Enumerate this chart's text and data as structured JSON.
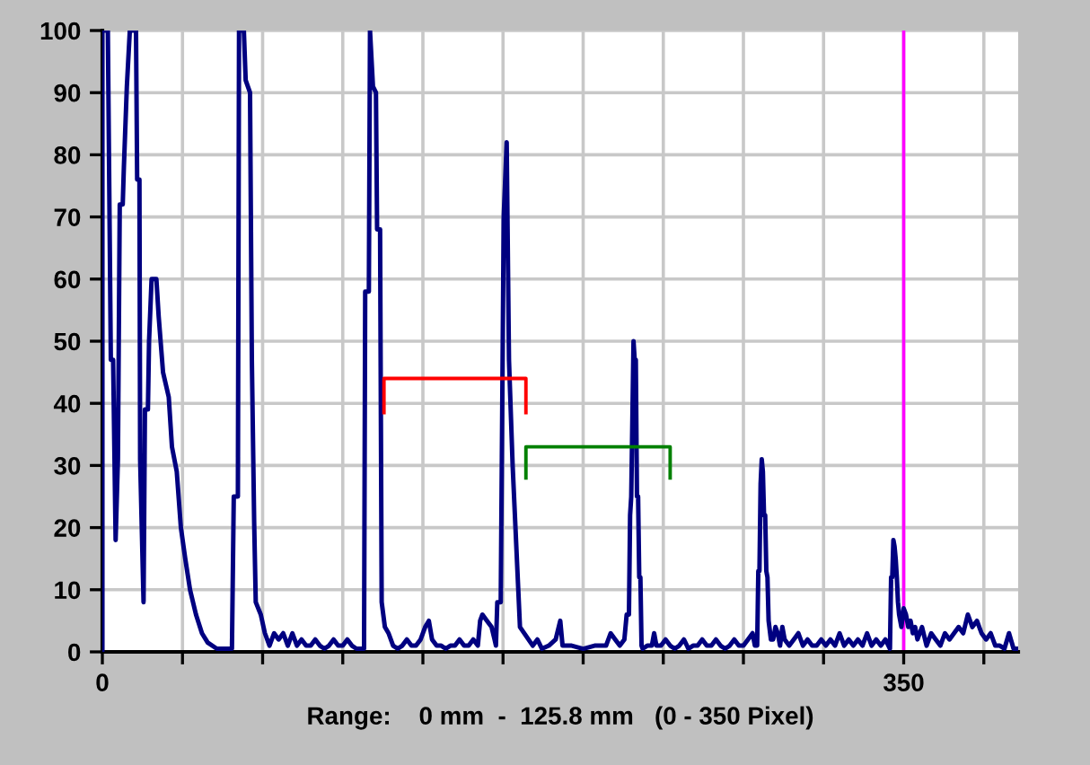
{
  "chart_data": {
    "type": "line",
    "xlabel": "Range:    0 mm  -  125.8 mm   (0 - 350 Pixel)",
    "xlim": [
      0,
      400
    ],
    "ylim": [
      0,
      100
    ],
    "xticks": [
      0,
      {
        "value": 35,
        "label": null
      },
      {
        "value": 70,
        "label": null
      },
      {
        "value": 105,
        "label": null
      },
      {
        "value": 140,
        "label": null
      },
      {
        "value": 175,
        "label": null
      },
      {
        "value": 210,
        "label": null
      },
      {
        "value": 245,
        "label": null
      },
      {
        "value": 280,
        "label": null
      },
      {
        "value": 315,
        "label": null
      },
      350,
      {
        "value": 385,
        "label": null
      }
    ],
    "yticks": [
      0,
      10,
      20,
      30,
      40,
      50,
      60,
      70,
      80,
      90,
      100
    ],
    "grid": true,
    "series": [
      {
        "color": "#000080",
        "x": [
          0,
          0,
          2.4,
          3.7,
          4.7,
          5.8,
          6.8,
          7.6,
          8.9,
          9.4,
          10.7,
          12,
          14.7,
          15.2,
          16.2,
          16.5,
          18,
          18.6,
          19.9,
          20.4,
          21.5,
          23.6,
          24.6,
          26.5,
          29,
          30.4,
          32.5,
          34.3,
          36.2,
          38.3,
          40.9,
          43.5,
          46,
          50,
          56.6,
          57.4,
          59.2,
          59.7,
          61.8,
          62.6,
          64.5,
          65.3,
          66.3,
          67,
          69.2,
          71,
          73,
          75,
          77,
          79,
          81,
          83,
          85,
          87,
          89,
          91,
          93,
          95,
          97,
          99,
          101,
          103,
          105,
          107,
          109,
          111,
          114.3,
          114.8,
          116.4,
          116.9,
          118.2,
          119.5,
          120,
          121.3,
          122,
          123.4,
          125,
          127,
          129,
          131,
          133,
          135,
          137,
          139,
          141,
          142.6,
          144,
          146,
          148,
          150,
          152,
          154,
          156,
          158,
          160,
          162,
          164,
          165,
          166,
          168,
          170,
          171.3,
          171.9,
          172.5,
          174,
          175.3,
          176.6,
          177.6,
          179.2,
          182.4,
          188,
          190,
          192,
          195,
          198,
          200,
          201,
          205,
          210,
          215,
          220,
          222,
          224,
          226,
          228,
          229,
          230,
          230.5,
          231,
          232,
          232.5,
          233,
          233.5,
          234,
          234.5,
          235,
          235.5,
          236,
          238,
          240,
          241,
          242,
          244,
          246,
          248,
          250,
          252,
          254,
          256,
          258,
          260,
          262,
          264,
          266,
          268,
          270,
          272,
          274,
          276,
          278,
          280,
          282,
          284,
          285,
          286,
          286.5,
          287,
          287.5,
          288,
          288.5,
          289,
          289.5,
          290,
          290.5,
          291,
          292,
          293,
          294,
          295,
          296,
          297,
          298,
          300,
          302,
          304,
          306,
          308,
          310,
          312,
          314,
          316,
          318,
          320,
          322,
          324,
          326,
          328,
          330,
          332,
          334,
          336,
          338,
          340,
          342,
          344,
          344.5,
          345,
          345.5,
          346,
          346.5,
          347,
          347.5,
          348,
          349,
          350,
          351,
          352,
          353,
          354,
          355,
          356,
          358,
          360,
          362,
          364,
          366,
          368,
          370,
          372,
          374,
          376,
          378,
          380,
          382,
          384,
          386,
          388,
          390,
          392,
          394,
          396,
          398,
          400
        ],
        "values": [
          0,
          100,
          100,
          47,
          47,
          18,
          31,
          72,
          72,
          78,
          91,
          100,
          100,
          76,
          76,
          31,
          8,
          39,
          39,
          50,
          60,
          60,
          54,
          45,
          41,
          33,
          29,
          20,
          15,
          10,
          6,
          3,
          1.5,
          0.5,
          0.5,
          25,
          25,
          100,
          100,
          92,
          90,
          47,
          21,
          8,
          6,
          3,
          1,
          3,
          2,
          3,
          1,
          3,
          1,
          2,
          1,
          1,
          2,
          1,
          0.5,
          1,
          2,
          1,
          1,
          2,
          1,
          0.5,
          0.5,
          58,
          58,
          100,
          91,
          90,
          68,
          68,
          8,
          4,
          3,
          1,
          0.5,
          1,
          2,
          1,
          1,
          2,
          4,
          5,
          2,
          1,
          1,
          0.5,
          1,
          1,
          2,
          1,
          1,
          2,
          1,
          5,
          6,
          5,
          4,
          2,
          1,
          8,
          8,
          70,
          82,
          47,
          30,
          4,
          1,
          2,
          0.5,
          1,
          2,
          5,
          1,
          1,
          0.5,
          1,
          1,
          3,
          2,
          1,
          2,
          6,
          6,
          22,
          25,
          50,
          47,
          47,
          25,
          25,
          12,
          12,
          1,
          0.5,
          1,
          1,
          3,
          1,
          1,
          2,
          1,
          0.5,
          1,
          2,
          0.5,
          1,
          1,
          2,
          1,
          1,
          2,
          1,
          0.5,
          1,
          2,
          1,
          1,
          2,
          3,
          1,
          1,
          13,
          13,
          27,
          31,
          29,
          22,
          22,
          13,
          12,
          5,
          2,
          2,
          4,
          3,
          1,
          4,
          2,
          1,
          2,
          3,
          1,
          2,
          1,
          1,
          2,
          1,
          2,
          1,
          3,
          1,
          2,
          1,
          2,
          1,
          3,
          1,
          2,
          1,
          2,
          0.5,
          12,
          12,
          18,
          17,
          15,
          12,
          8,
          6,
          4,
          7,
          6,
          4,
          5,
          3,
          4,
          2,
          4,
          1,
          3,
          2,
          1,
          3,
          2,
          3,
          4,
          3,
          6,
          4,
          5,
          3,
          2,
          3,
          1,
          1,
          0.5,
          3,
          0.5,
          0.5
        ]
      },
      {
        "color": "#ff0000",
        "x": [
          123,
          123,
          185,
          185
        ],
        "values": [
          38.5,
          44,
          44,
          38.5
        ]
      },
      {
        "color": "#008000",
        "x": [
          185,
          185,
          248,
          248
        ],
        "values": [
          28,
          33,
          33,
          28
        ]
      }
    ],
    "ref_lines": [
      {
        "axis": "x",
        "value": 350,
        "color": "#ff00ff"
      }
    ]
  }
}
